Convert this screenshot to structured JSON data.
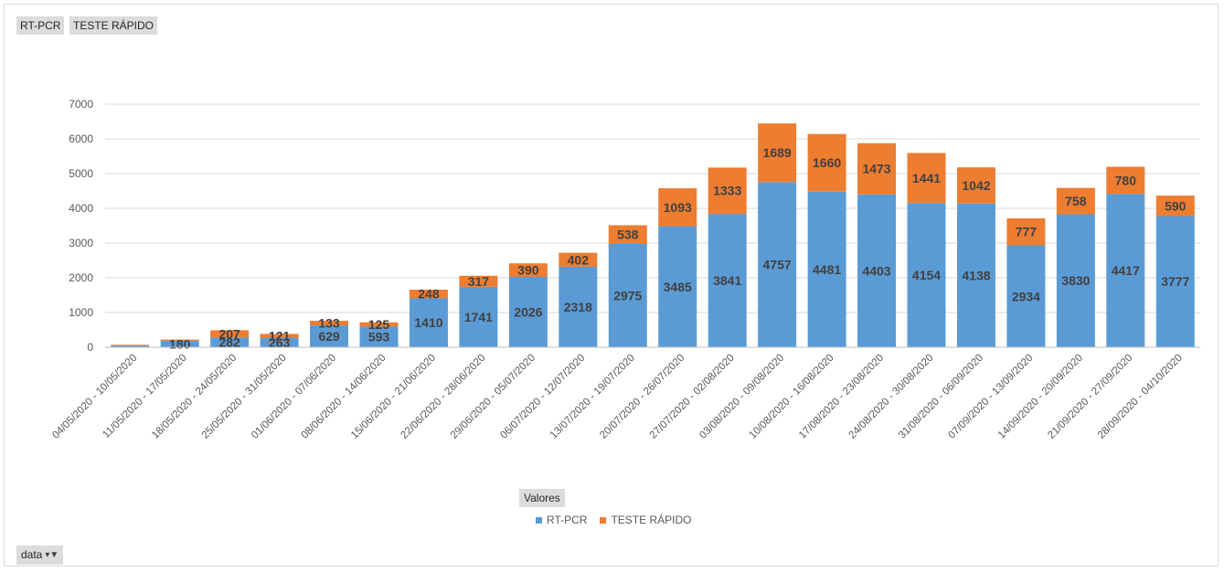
{
  "field_buttons": {
    "rt_pcr": "RT-PCR",
    "teste_rapido": "TESTE RÁPIDO"
  },
  "values_button": "Valores",
  "filter_button": {
    "label": "data",
    "icon": "funnel-dropdown-icon"
  },
  "chart_data": {
    "type": "bar",
    "stacked": true,
    "categories": [
      "04/05/2020 - 10/05/2020",
      "11/05/2020 - 17/05/2020",
      "18/05/2020 - 24/05/2020",
      "25/05/2020 - 31/05/2020",
      "01/06/2020 - 07/06/2020",
      "08/06/2020 - 14/06/2020",
      "15/06/2020 - 21/06/2020",
      "22/06/2020 - 28/06/2020",
      "29/06/2020 - 05/07/2020",
      "06/07/2020 - 12/07/2020",
      "13/07/2020 - 19/07/2020",
      "20/07/2020 - 26/07/2020",
      "27/07/2020 - 02/08/2020",
      "03/08/2020 - 09/08/2020",
      "10/08/2020 - 16/08/2020",
      "17/08/2020 - 23/08/2020",
      "24/08/2020 - 30/08/2020",
      "31/08/2020 - 06/09/2020",
      "07/09/2020 - 13/09/2020",
      "14/09/2020 - 20/09/2020",
      "21/09/2020 - 27/09/2020",
      "28/09/2020 - 04/10/2020"
    ],
    "series": [
      {
        "name": "RT-PCR",
        "color": "#5b9bd5",
        "values": [
          50,
          180,
          282,
          263,
          629,
          593,
          1410,
          1741,
          2026,
          2318,
          2975,
          3485,
          3841,
          4757,
          4481,
          4403,
          4154,
          4138,
          2934,
          3830,
          4417,
          3777
        ],
        "labels": [
          "",
          "180",
          "282",
          "263",
          "629",
          "593",
          "1410",
          "1741",
          "2026",
          "2318",
          "2975",
          "3485",
          "3841",
          "4757",
          "4481",
          "4403",
          "4154",
          "4138",
          "2934",
          "3830",
          "4417",
          "3777"
        ]
      },
      {
        "name": "TESTE RÁPIDO",
        "color": "#ed7d31",
        "values": [
          20,
          40,
          207,
          121,
          133,
          125,
          248,
          317,
          390,
          402,
          538,
          1093,
          1333,
          1689,
          1660,
          1473,
          1441,
          1042,
          777,
          758,
          780,
          590
        ],
        "labels": [
          "",
          "",
          "207",
          "121",
          "133",
          "125",
          "248",
          "317",
          "390",
          "402",
          "538",
          "1093",
          "1333",
          "1689",
          "1660",
          "1473",
          "1441",
          "1042",
          "777",
          "758",
          "780",
          "590"
        ]
      }
    ],
    "ylim": [
      0,
      7000
    ],
    "yticks": [
      "0",
      "1000",
      "2000",
      "3000",
      "4000",
      "5000",
      "6000",
      "7000"
    ],
    "grid": true,
    "legend_position": "bottom"
  }
}
